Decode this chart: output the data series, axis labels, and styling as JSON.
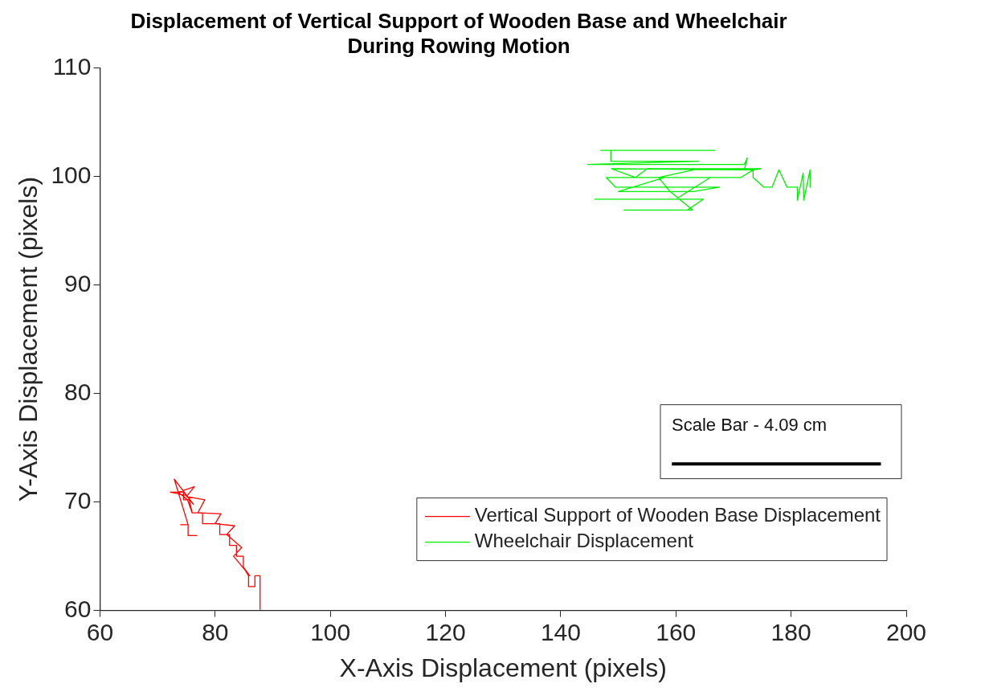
{
  "chart_data": {
    "type": "line",
    "title": "Displacement of Vertical Support of Wooden Base and Wheelchair\nDuring Rowing Motion",
    "xlabel": "X-Axis Displacement (pixels)",
    "ylabel": "Y-Axis Displacement (pixels)",
    "xlim": [
      60,
      200
    ],
    "xticks": [
      60,
      80,
      100,
      120,
      140,
      160,
      180,
      200
    ],
    "ylim": [
      60,
      110
    ],
    "yticks": [
      60,
      70,
      80,
      90,
      100,
      110
    ],
    "grid": false,
    "legend": "bottom right",
    "marker": "none",
    "line_style": "solid",
    "annotations": [
      "Scale Bar - 4.09 cm"
    ],
    "series": [
      {
        "name": "Vertical Support of Wooden Base Displacement",
        "color": "#ff0000",
        "x": [
          76.9,
          75.3,
          75.3,
          74.0,
          74.0,
          75.3,
          72.9,
          76.2,
          75.0,
          72.2,
          74.5,
          74.5,
          75.5,
          76.0,
          77.8,
          77.8,
          80.8,
          80.8,
          82.5,
          82.5,
          83.7,
          83.7,
          84.9,
          84.9,
          86.0,
          83.2,
          84.6,
          82.0,
          83.4,
          80.0,
          81.0,
          77.0,
          78.2,
          75.0,
          76.4,
          73.6,
          75.2,
          76.0,
          77.8,
          77.8,
          80.8,
          80.8,
          82.5,
          82.5,
          83.7,
          83.7,
          84.9,
          84.9,
          85.8,
          85.8,
          86.9,
          86.9,
          87.8,
          87.8
        ],
        "values": [
          66.9,
          66.9,
          67.9,
          67.9,
          67.9,
          67.9,
          72.1,
          69.8,
          70.6,
          70.9,
          70.9,
          70.2,
          70.2,
          69.0,
          69.0,
          68.0,
          68.0,
          67.0,
          67.0,
          66.0,
          66.0,
          65.0,
          65.0,
          64.0,
          63.2,
          65.0,
          65.8,
          67.0,
          67.8,
          68.0,
          68.9,
          69.0,
          70.2,
          70.5,
          71.4,
          70.9,
          70.2,
          69.0,
          69.0,
          68.0,
          68.0,
          67.0,
          67.0,
          66.0,
          66.0,
          65.0,
          65.0,
          64.0,
          63.2,
          62.2,
          62.2,
          63.2,
          63.2,
          60.1
        ]
      },
      {
        "name": "Wheelchair Displacement",
        "color": "#00ee00",
        "x": [
          146.9,
          166.8,
          148.7,
          148.7,
          164.0,
          144.7,
          171.9,
          172.4,
          171.9,
          148.8,
          153.0,
          155.0,
          174.8,
          173.4,
          171.3,
          147.9,
          149.5,
          167.6,
          163.0,
          150.0,
          158.0,
          166.0,
          160.0,
          145.9,
          164.8,
          162.0,
          151.0,
          162.9,
          159.0,
          157.0,
          164.0,
          171.9,
          173.4,
          173.4,
          175.3,
          176.7,
          177.9,
          179.3,
          181.1,
          181.1,
          182.1,
          182.2,
          183.3,
          183.3
        ],
        "values": [
          102.4,
          102.4,
          102.4,
          101.4,
          101.4,
          101.1,
          101.1,
          101.7,
          100.6,
          100.7,
          99.9,
          100.7,
          100.7,
          100.6,
          99.9,
          99.9,
          99.0,
          99.0,
          98.6,
          98.6,
          99.9,
          99.9,
          97.9,
          97.9,
          97.9,
          96.9,
          96.9,
          96.9,
          98.6,
          99.9,
          100.7,
          100.6,
          100.6,
          99.9,
          99.0,
          99.0,
          100.6,
          99.0,
          99.0,
          97.8,
          100.3,
          97.8,
          100.6,
          99.0
        ]
      },
      {
        "color": "#000000",
        "x": [
          159.3,
          195.6
        ],
        "values": [
          73.5,
          73.5
        ]
      }
    ]
  }
}
